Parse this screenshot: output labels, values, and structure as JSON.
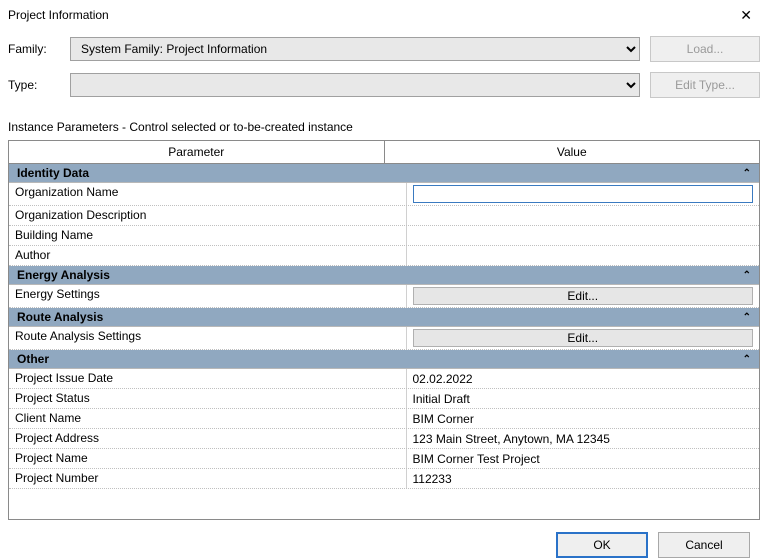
{
  "window": {
    "title": "Project Information",
    "close_glyph": "✕"
  },
  "form": {
    "family_label": "Family:",
    "family_value": "System Family: Project Information",
    "type_label": "Type:",
    "type_value": "",
    "load_button": "Load...",
    "edit_type_button": "Edit Type..."
  },
  "instance_label": "Instance Parameters - Control selected or to-be-created instance",
  "columns": {
    "parameter": "Parameter",
    "value": "Value"
  },
  "sections": {
    "identity": {
      "title": "Identity Data",
      "rows": {
        "org_name": {
          "label": "Organization Name",
          "value": ""
        },
        "org_desc": {
          "label": "Organization Description",
          "value": ""
        },
        "building": {
          "label": "Building Name",
          "value": ""
        },
        "author": {
          "label": "Author",
          "value": ""
        }
      }
    },
    "energy": {
      "title": "Energy Analysis",
      "rows": {
        "energy_settings": {
          "label": "Energy Settings",
          "button": "Edit..."
        }
      }
    },
    "route": {
      "title": "Route Analysis",
      "rows": {
        "route_settings": {
          "label": "Route Analysis Settings",
          "button": "Edit..."
        }
      }
    },
    "other": {
      "title": "Other",
      "rows": {
        "issue_date": {
          "label": "Project Issue Date",
          "value": "02.02.2022"
        },
        "status": {
          "label": "Project Status",
          "value": "Initial Draft"
        },
        "client": {
          "label": "Client Name",
          "value": "BIM Corner"
        },
        "address": {
          "label": "Project Address",
          "value": "123 Main Street, Anytown, MA 12345"
        },
        "project_name": {
          "label": "Project Name",
          "value": "BIM Corner Test Project"
        },
        "project_num": {
          "label": "Project Number",
          "value": "112233"
        }
      }
    }
  },
  "buttons": {
    "ok": "OK",
    "cancel": "Cancel"
  },
  "colors": {
    "section_header_bg": "#90a8c0",
    "border": "#8a8a8a",
    "dotted": "#c0c0c0",
    "disabled_text": "#9a9a9a",
    "primary_border": "#2a72c8",
    "button_bg": "#efefef"
  },
  "chevron": "⌃"
}
